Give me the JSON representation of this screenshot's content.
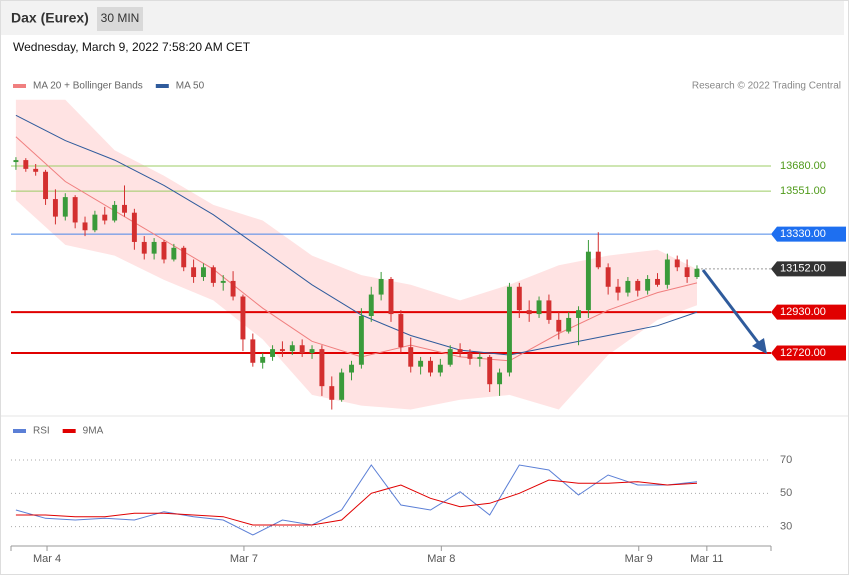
{
  "header": {
    "title": "Dax (Eurex)",
    "interval": "30 MIN",
    "timestamp": "Wednesday, March 9, 2022 7:58:20 AM CET"
  },
  "chart_data": [
    {
      "type": "candlestick",
      "credit": "Research © 2022 Trading Central",
      "xlim": [
        -0.5,
        76.5
      ],
      "ylim": [
        12402,
        14044
      ],
      "up_color": "#3a9a3a",
      "down_color": "#d32f2f",
      "candles": [
        [
          13700,
          13725,
          13660,
          13710
        ],
        [
          13710,
          13720,
          13650,
          13665
        ],
        [
          13665,
          13690,
          13630,
          13650
        ],
        [
          13650,
          13660,
          13480,
          13510
        ],
        [
          13510,
          13560,
          13380,
          13420
        ],
        [
          13420,
          13540,
          13400,
          13520
        ],
        [
          13520,
          13530,
          13360,
          13390
        ],
        [
          13390,
          13420,
          13320,
          13350
        ],
        [
          13350,
          13450,
          13340,
          13430
        ],
        [
          13430,
          13470,
          13380,
          13400
        ],
        [
          13400,
          13500,
          13390,
          13480
        ],
        [
          13480,
          13580,
          13420,
          13440
        ],
        [
          13440,
          13460,
          13250,
          13290
        ],
        [
          13290,
          13320,
          13200,
          13230
        ],
        [
          13230,
          13310,
          13200,
          13290
        ],
        [
          13290,
          13300,
          13180,
          13200
        ],
        [
          13200,
          13280,
          13190,
          13260
        ],
        [
          13260,
          13270,
          13140,
          13160
        ],
        [
          13160,
          13200,
          13080,
          13110
        ],
        [
          13110,
          13180,
          13090,
          13160
        ],
        [
          13160,
          13170,
          13060,
          13080
        ],
        [
          13080,
          13120,
          13040,
          13090
        ],
        [
          13090,
          13140,
          12990,
          13010
        ],
        [
          13010,
          13020,
          12730,
          12790
        ],
        [
          12790,
          12820,
          12650,
          12670
        ],
        [
          12670,
          12720,
          12640,
          12700
        ],
        [
          12700,
          12760,
          12680,
          12740
        ],
        [
          12740,
          12780,
          12700,
          12730
        ],
        [
          12730,
          12780,
          12710,
          12760
        ],
        [
          12760,
          12790,
          12700,
          12720
        ],
        [
          12720,
          12760,
          12690,
          12740
        ],
        [
          12740,
          12760,
          12500,
          12550
        ],
        [
          12550,
          12600,
          12430,
          12480
        ],
        [
          12480,
          12640,
          12470,
          12620
        ],
        [
          12620,
          12680,
          12580,
          12660
        ],
        [
          12660,
          12950,
          12640,
          12910
        ],
        [
          12910,
          13060,
          12880,
          13020
        ],
        [
          13020,
          13136,
          12990,
          13100
        ],
        [
          13100,
          13110,
          12880,
          12920
        ],
        [
          12920,
          12940,
          12720,
          12750
        ],
        [
          12750,
          12800,
          12620,
          12650
        ],
        [
          12650,
          12700,
          12610,
          12680
        ],
        [
          12680,
          12700,
          12600,
          12620
        ],
        [
          12620,
          12690,
          12600,
          12660
        ],
        [
          12660,
          12760,
          12650,
          12740
        ],
        [
          12740,
          12770,
          12700,
          12720
        ],
        [
          12720,
          12740,
          12660,
          12690
        ],
        [
          12690,
          12720,
          12650,
          12700
        ],
        [
          12700,
          12710,
          12520,
          12560
        ],
        [
          12560,
          12640,
          12500,
          12620
        ],
        [
          12620,
          13080,
          12600,
          13060
        ],
        [
          13060,
          13080,
          12900,
          12940
        ],
        [
          12940,
          12990,
          12880,
          12920
        ],
        [
          12920,
          13010,
          12900,
          12990
        ],
        [
          12990,
          13020,
          12870,
          12890
        ],
        [
          12890,
          12930,
          12790,
          12830
        ],
        [
          12830,
          12930,
          12820,
          12900
        ],
        [
          12900,
          12960,
          12760,
          12940
        ],
        [
          12940,
          13300,
          12900,
          13240
        ],
        [
          13240,
          13340,
          13150,
          13160
        ],
        [
          13160,
          13180,
          13020,
          13060
        ],
        [
          13060,
          13100,
          12990,
          13030
        ],
        [
          13030,
          13110,
          13010,
          13090
        ],
        [
          13090,
          13100,
          13010,
          13040
        ],
        [
          13040,
          13120,
          13020,
          13100
        ],
        [
          13100,
          13130,
          13060,
          13070
        ],
        [
          13070,
          13230,
          13050,
          13200
        ],
        [
          13200,
          13220,
          13140,
          13160
        ],
        [
          13160,
          13200,
          13080,
          13110
        ],
        [
          13110,
          13170,
          13100,
          13152
        ]
      ],
      "x": [
        0,
        5,
        10,
        15,
        20,
        25,
        30,
        35,
        40,
        45,
        50,
        55,
        60,
        65,
        69
      ],
      "series": [
        {
          "name": "MA 20 + Bollinger Bands",
          "color": "#f07f7f",
          "values": [
            13830,
            13600,
            13450,
            13300,
            13150,
            12950,
            12780,
            12700,
            12760,
            12700,
            12680,
            12820,
            12940,
            13030,
            13080
          ]
        },
        {
          "name": "MA 50",
          "color": "#2f5b9c",
          "values": [
            13940,
            13810,
            13710,
            13580,
            13430,
            13250,
            13070,
            12915,
            12810,
            12735,
            12710,
            12760,
            12810,
            12860,
            12930
          ]
        }
      ],
      "bands": {
        "color": "#ffe3e3",
        "upper": [
          14020,
          14020,
          13760,
          13630,
          13480,
          13400,
          13220,
          13120,
          13070,
          12990,
          13070,
          13170,
          13220,
          13250,
          13150
        ],
        "lower": [
          13505,
          13275,
          13220,
          13095,
          12990,
          12790,
          12505,
          12450,
          12430,
          12480,
          12505,
          12430,
          12710,
          12890,
          12965
        ]
      },
      "levels": [
        {
          "value": 13680,
          "label": "13680.00",
          "color": "#9ccc65"
        },
        {
          "value": 13551,
          "label": "13551.00",
          "color": "#9ccc65"
        },
        {
          "value": 13330,
          "label": "13330.00",
          "color": "#4a86e8",
          "box": "#1e6ff0"
        },
        {
          "value": 13152,
          "label": "13152.00",
          "color": "#999999",
          "box": "#333333"
        },
        {
          "value": 12930,
          "label": "12930.00",
          "color": "#e00000",
          "box": "#e00000"
        },
        {
          "value": 12720,
          "label": "12720.00",
          "color": "#e00000",
          "box": "#e00000"
        }
      ]
    },
    {
      "type": "line",
      "xlim": [
        -0.5,
        76.5
      ],
      "ylim": [
        19,
        94
      ],
      "yticks": [
        70,
        50,
        30
      ],
      "grid": true,
      "x": [
        0,
        3,
        6,
        9,
        12,
        15,
        18,
        21,
        24,
        27,
        30,
        33,
        36,
        39,
        42,
        45,
        48,
        51,
        54,
        57,
        60,
        63,
        66,
        69
      ],
      "series": [
        {
          "name": "RSI",
          "color": "#5b7fd6",
          "values": [
            40,
            35,
            34,
            35,
            34,
            39,
            36,
            34,
            25,
            34,
            31,
            40,
            67,
            43,
            40,
            51,
            37,
            67,
            64,
            49,
            61,
            55,
            55,
            57
          ]
        },
        {
          "name": "9MA",
          "color": "#e00000",
          "values": [
            37,
            37,
            36,
            36,
            38,
            38,
            37,
            36,
            31,
            31,
            31,
            34,
            50,
            55,
            47,
            42,
            44,
            50,
            58,
            56,
            56,
            57,
            55,
            56
          ]
        }
      ],
      "xticks": [
        {
          "value": 3.15,
          "label": "Mar 4"
        },
        {
          "value": 23.1,
          "label": "Mar 7"
        },
        {
          "value": 43.1,
          "label": "Mar 8"
        },
        {
          "value": 63.1,
          "label": "Mar 9"
        },
        {
          "value": 70,
          "label": "Mar 11"
        }
      ]
    }
  ]
}
